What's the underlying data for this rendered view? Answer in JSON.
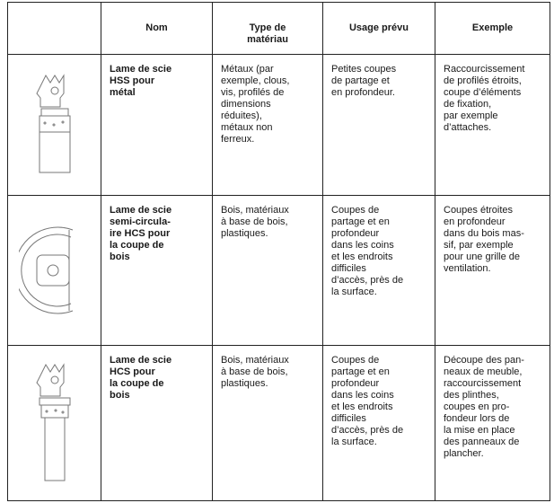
{
  "table": {
    "header": [
      [
        "Nom"
      ],
      [
        "Type de",
        "matériau"
      ],
      [
        "Usage prévu"
      ],
      [
        "Exemple"
      ]
    ],
    "rows": [
      {
        "cells": [
          [
            "Lame de scie",
            "HSS pour",
            "métal"
          ],
          [
            "Métaux (par",
            "exemple, clous,",
            "vis, profilés de",
            "dimensions",
            "réduites),",
            "métaux non",
            "ferreux."
          ],
          [
            "Petites coupes",
            "de partage et",
            "en profondeur."
          ],
          [
            "Raccourcissement",
            "de profilés étroits,",
            "coupe d’éléments",
            "de fixation,",
            "par exemple",
            "d’attaches."
          ]
        ]
      },
      {
        "cells": [
          [
            "Lame de scie",
            "semi-circula-",
            "ire HCS pour",
            "la coupe de",
            "bois"
          ],
          [
            "Bois, matériaux",
            "à base de bois,",
            "plastiques."
          ],
          [
            "Coupes de",
            "partage et en",
            "profondeur",
            "dans les coins",
            "et les endroits",
            "difficiles",
            "d’accès, près de",
            "la surface."
          ],
          [
            "Coupes étroites",
            "en profondeur",
            "dans du bois mas-",
            "sif, par exemple",
            "pour une grille de",
            "ventilation."
          ]
        ]
      },
      {
        "cells": [
          [
            "Lame de scie",
            "HCS pour",
            "la coupe de",
            "bois"
          ],
          [
            "Bois, matériaux",
            "à base de bois,",
            "plastiques."
          ],
          [
            "Coupes de",
            "partage et en",
            "profondeur",
            "dans les coins",
            "et les endroits",
            "difficiles",
            "d’accès, près de",
            "la surface."
          ],
          [
            "Découpe des pan-",
            "neaux de meuble,",
            "raccourcissement",
            "des plinthes,",
            "coupes en pro-",
            "fondeur lors de",
            "la mise en place",
            "des panneaux de",
            "plancher."
          ]
        ]
      }
    ]
  }
}
